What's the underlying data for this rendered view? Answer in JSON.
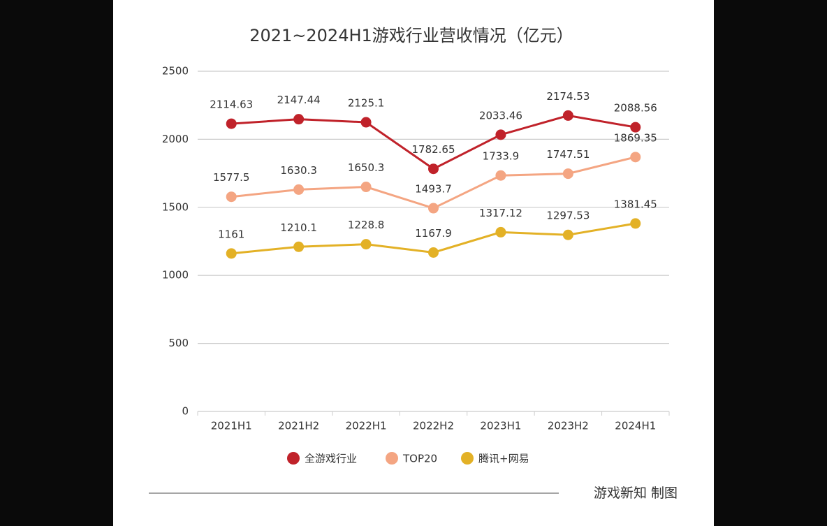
{
  "chart_data": {
    "type": "line",
    "title": "2021~2024H1游戏行业营收情况（亿元）",
    "categories": [
      "2021H1",
      "2021H2",
      "2022H1",
      "2022H2",
      "2023H1",
      "2023H2",
      "2024H1"
    ],
    "series": [
      {
        "name": "全游戏行业",
        "color": "#c0222a",
        "values": [
          2114.63,
          2147.44,
          2125.1,
          1782.65,
          2033.46,
          2174.53,
          2088.56
        ]
      },
      {
        "name": "TOP20",
        "color": "#f4a582",
        "values": [
          1577.5,
          1630.3,
          1650.3,
          1493.7,
          1733.9,
          1747.51,
          1869.35
        ]
      },
      {
        "name": "腾讯+网易",
        "color": "#e3b126",
        "values": [
          1161,
          1210.1,
          1228.8,
          1167.9,
          1317.12,
          1297.53,
          1381.45
        ]
      }
    ],
    "ylim": [
      0,
      2500
    ],
    "yticks": [
      0,
      500,
      1000,
      1500,
      2000,
      2500
    ],
    "grid": true,
    "legend": "bottom",
    "source": "游戏新知  制图"
  }
}
